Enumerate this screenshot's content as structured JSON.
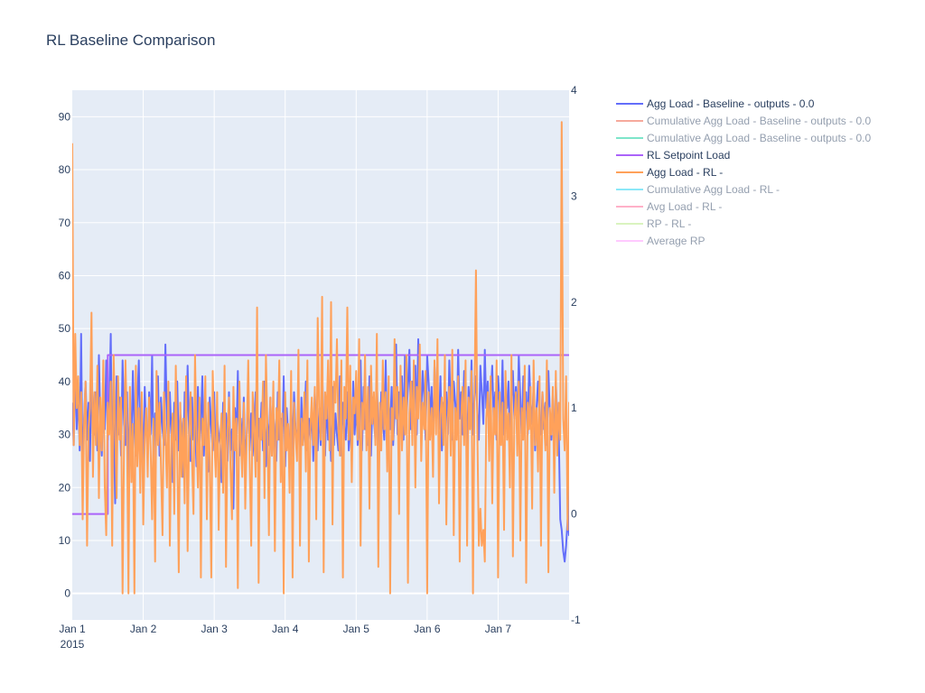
{
  "title": "RL Baseline Comparison",
  "colors": {
    "plot_background": "#e5ecf6",
    "grid": "#ffffff",
    "text": "#2a3f5f"
  },
  "chart_data": {
    "type": "line",
    "title": "RL Baseline Comparison",
    "xlabel": "",
    "ylabel": "",
    "x_axis": {
      "type": "date",
      "range": [
        "2015-01-01 00:00",
        "2015-01-08 00:00"
      ],
      "ticks": [
        "Jan 1",
        "Jan 2",
        "Jan 3",
        "Jan 4",
        "Jan 5",
        "Jan 6",
        "Jan 7"
      ],
      "tick_year_label": "2015"
    },
    "y_axis": {
      "range": [
        -5,
        95
      ],
      "ticks": [
        0,
        10,
        20,
        30,
        40,
        50,
        60,
        70,
        80,
        90
      ]
    },
    "y2_axis": {
      "range": [
        -1,
        4
      ],
      "ticks": [
        -1,
        0,
        1,
        2,
        3,
        4
      ]
    },
    "grid": true,
    "legend_position": "right",
    "legend": [
      {
        "name": "Agg Load - Baseline - outputs  - 0.0",
        "color": "#636efa",
        "visible": true
      },
      {
        "name": "Cumulative Agg Load - Baseline - outputs  - 0.0",
        "color": "#ef553b",
        "visible": false
      },
      {
        "name": "Cumulative Agg Load - Baseline - outputs  - 0.0",
        "color": "#00cc96",
        "visible": false
      },
      {
        "name": "RL Setpoint Load",
        "color": "#ab63fa",
        "visible": true
      },
      {
        "name": "Agg Load - RL -",
        "color": "#ffa15a",
        "visible": true
      },
      {
        "name": "Cumulative Agg Load - RL -",
        "color": "#19d3f3",
        "visible": false
      },
      {
        "name": "Avg Load - RL -",
        "color": "#ff6692",
        "visible": false
      },
      {
        "name": "RP - RL -",
        "color": "#b6e880",
        "visible": false
      },
      {
        "name": "Average RP",
        "color": "#ff97ff",
        "visible": false
      }
    ],
    "series": [
      {
        "name": "Agg Load - Baseline - outputs  - 0.0",
        "color": "#636efa",
        "x_start": "2015-01-01 00:00",
        "step_hours": 0.5,
        "values": [
          36,
          28,
          44,
          31,
          38,
          27,
          49,
          21,
          33,
          40,
          29,
          36,
          25,
          42,
          34,
          30,
          38,
          27,
          45,
          32,
          26,
          39,
          31,
          44,
          29,
          35,
          49,
          24,
          33,
          17,
          41,
          30,
          37,
          26,
          44,
          32,
          28,
          38,
          22,
          35,
          29,
          42,
          31,
          26,
          36,
          44,
          28,
          33,
          25,
          39,
          31,
          27,
          38,
          30,
          45,
          24,
          34,
          29,
          41,
          26,
          37,
          31,
          28,
          47,
          33,
          25,
          38,
          30,
          21,
          36,
          29,
          40,
          27,
          34,
          31,
          22,
          38,
          28,
          43,
          30,
          25,
          37,
          29,
          33,
          24,
          39,
          28,
          32,
          41,
          26,
          35,
          29,
          23,
          37,
          31,
          27,
          38,
          25,
          33,
          30,
          28,
          21,
          36,
          29,
          34,
          25,
          38,
          27,
          31,
          16,
          35,
          29,
          42,
          26,
          33,
          28,
          37,
          24,
          30,
          39,
          27,
          34,
          26,
          31,
          38,
          25,
          33,
          29,
          36,
          27,
          40,
          24,
          32,
          28,
          37,
          26,
          34,
          30,
          25,
          38,
          29,
          33,
          27,
          41,
          24,
          35,
          30,
          28,
          36,
          26,
          38,
          31,
          29,
          34,
          25,
          37,
          28,
          32,
          40,
          27,
          33,
          29,
          36,
          25,
          38,
          30,
          27,
          35,
          28,
          42,
          31,
          26,
          37,
          29,
          33,
          25,
          39,
          28,
          34,
          30,
          27,
          41,
          26,
          36,
          31,
          29,
          38,
          27,
          33,
          25,
          40,
          30,
          36,
          28,
          32,
          44,
          27,
          39,
          31,
          35,
          28,
          41,
          26,
          37,
          33,
          29,
          40,
          31,
          27,
          38,
          33,
          29,
          44,
          27,
          36,
          31,
          39,
          28,
          34,
          47,
          30,
          38,
          35,
          41,
          29,
          45,
          33,
          39,
          46,
          31,
          40,
          36,
          43,
          30,
          48,
          38,
          34,
          42,
          37,
          29,
          45,
          40,
          33,
          39,
          28,
          43,
          35,
          37,
          31,
          41,
          27,
          36,
          32,
          38,
          30,
          44,
          34,
          29,
          40,
          36,
          31,
          46,
          33,
          38,
          30,
          42,
          35,
          27,
          39,
          33,
          44,
          30,
          37,
          41,
          34,
          29,
          43,
          38,
          32,
          46,
          35,
          40,
          31,
          37,
          43,
          33,
          38,
          29,
          41,
          36,
          32,
          44,
          30,
          38,
          35,
          40,
          28,
          36,
          42,
          33,
          39,
          31,
          45,
          37,
          29,
          41,
          34,
          38,
          30,
          43,
          36,
          32,
          39,
          27,
          35,
          40,
          33,
          30,
          38,
          31,
          36,
          28,
          42,
          34,
          29,
          37,
          26,
          40,
          33,
          31,
          14,
          12,
          8,
          6,
          9,
          14,
          11,
          35,
          33,
          28,
          38,
          31,
          26,
          36,
          29,
          33,
          25,
          39,
          30,
          27,
          35,
          28,
          32,
          24,
          37,
          30,
          26,
          34,
          28,
          31,
          36,
          25,
          33,
          29,
          38,
          27,
          34,
          30,
          26,
          39,
          31,
          28,
          35,
          25,
          33,
          29,
          40,
          27,
          36,
          31,
          34,
          28,
          47,
          30,
          33,
          21,
          38,
          35,
          29,
          40,
          26,
          34,
          31,
          37,
          28,
          33,
          35,
          22,
          29,
          40,
          18,
          14,
          10,
          6,
          4,
          9,
          12,
          28,
          34,
          30,
          26,
          38,
          31,
          35,
          29,
          46,
          28,
          37,
          33,
          41,
          30,
          36,
          46
        ]
      },
      {
        "name": "RL Setpoint Load",
        "color": "#ab63fa",
        "points": [
          {
            "x": "2015-01-01 00:00",
            "y": 15
          },
          {
            "x": "2015-01-01 12:00",
            "y": 15
          },
          {
            "x": "2015-01-01 12:00",
            "y": 45
          },
          {
            "x": "2015-01-08 00:00",
            "y": 45
          }
        ]
      },
      {
        "name": "Agg Load - RL -",
        "color": "#ffa15a",
        "x_start": "2015-01-01 00:00",
        "step_hours": 0.5,
        "values": [
          85,
          28,
          49,
          35,
          41,
          28,
          38,
          14,
          32,
          40,
          9,
          31,
          35,
          53,
          22,
          38,
          28,
          43,
          18,
          37,
          27,
          44,
          20,
          11,
          36,
          30,
          40,
          9,
          45,
          31,
          18,
          41,
          29,
          37,
          0,
          28,
          44,
          31,
          0,
          39,
          21,
          32,
          0,
          43,
          24,
          35,
          19,
          38,
          13,
          29,
          35,
          22,
          37,
          27,
          14,
          33,
          6,
          42,
          28,
          36,
          24,
          11,
          38,
          30,
          20,
          40,
          9,
          29,
          34,
          15,
          43,
          27,
          4,
          36,
          22,
          33,
          17,
          41,
          8,
          30,
          38,
          25,
          15,
          45,
          30,
          20,
          37,
          3,
          33,
          28,
          41,
          14,
          36,
          25,
          3,
          42,
          30,
          22,
          38,
          12,
          29,
          34,
          19,
          43,
          5,
          31,
          37,
          24,
          14,
          39,
          27,
          33,
          1,
          40,
          29,
          22,
          36,
          16,
          30,
          44,
          25,
          9,
          38,
          31,
          22,
          54,
          2,
          33,
          29,
          40,
          18,
          45,
          31,
          11,
          37,
          26,
          40,
          8,
          35,
          29,
          44,
          21,
          34,
          0,
          38,
          27,
          32,
          19,
          42,
          3,
          36,
          30,
          25,
          46,
          9,
          33,
          28,
          38,
          23,
          44,
          6,
          31,
          37,
          28,
          39,
          14,
          52,
          34,
          29,
          56,
          4,
          38,
          33,
          44,
          27,
          55,
          13,
          40,
          36,
          48,
          31,
          26,
          44,
          3,
          39,
          33,
          54,
          29,
          43,
          21,
          37,
          34,
          42,
          29,
          48,
          9,
          36,
          31,
          45,
          27,
          39,
          16,
          43,
          32,
          38,
          28,
          49,
          5,
          36,
          27,
          44,
          31,
          38,
          23,
          41,
          0,
          35,
          29,
          48,
          33,
          39,
          15,
          43,
          27,
          37,
          30,
          45,
          2,
          34,
          40,
          28,
          44,
          20,
          39,
          33,
          47,
          25,
          36,
          31,
          42,
          0,
          38,
          29,
          35,
          22,
          44,
          30,
          48,
          17,
          34,
          37,
          28,
          45,
          13,
          33,
          39,
          26,
          46,
          11,
          35,
          29,
          41,
          6,
          33,
          39,
          28,
          44,
          9,
          37,
          31,
          42,
          0,
          36,
          61,
          30,
          9,
          16,
          9,
          12,
          6,
          33,
          38,
          25,
          41,
          17,
          35,
          30,
          44,
          3,
          38,
          28,
          36,
          12,
          42,
          29,
          34,
          20,
          45,
          7,
          33,
          38,
          26,
          40,
          10,
          35,
          29,
          43,
          2,
          36,
          31,
          39,
          16,
          44,
          28,
          35,
          23,
          41,
          9,
          38,
          33,
          27,
          44,
          4,
          35,
          30,
          39,
          19,
          42,
          26,
          36,
          29,
          89,
          33,
          27,
          41,
          12,
          36,
          30,
          38,
          20,
          44,
          28,
          48,
          0,
          34,
          30,
          41,
          15,
          37,
          28,
          45,
          6,
          33,
          40,
          29,
          36,
          22,
          42,
          27,
          38,
          18,
          44,
          31,
          35,
          25,
          41,
          3,
          37,
          29,
          46,
          11,
          34,
          39,
          28,
          43,
          20,
          36,
          31,
          38,
          8,
          44,
          29,
          35,
          24,
          40,
          1,
          37,
          32,
          43,
          15,
          36,
          28,
          41,
          22,
          45,
          30,
          38,
          13,
          35,
          42,
          27,
          39,
          0,
          46,
          31,
          37,
          24,
          42,
          30,
          48,
          18,
          36,
          29,
          45,
          2,
          38,
          33,
          41,
          26,
          44,
          10,
          36,
          29,
          47,
          30,
          51
        ]
      }
    ]
  }
}
